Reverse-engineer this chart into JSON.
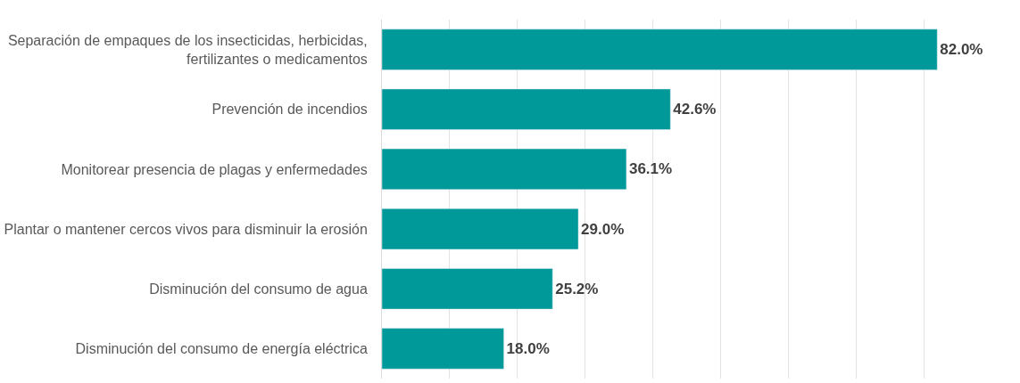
{
  "chart_data": {
    "type": "bar",
    "orientation": "horizontal",
    "categories": [
      "Separación de empaques de los insecticidas, herbicidas,\nfertilizantes o medicamentos",
      "Prevención de incendios",
      "Monitorear presencia de plagas y enfermedades",
      "Plantar o mantener cercos vivos para disminuir la erosión",
      "Disminución del consumo de agua",
      "Disminución del consumo de energía eléctrica"
    ],
    "values": [
      82.0,
      42.6,
      36.1,
      29.0,
      25.2,
      18.0
    ],
    "value_labels": [
      "82.0%",
      "42.6%",
      "36.1%",
      "29.0%",
      "25.2%",
      "18.0%"
    ],
    "color": "#009999",
    "grid": "x",
    "tick_labels": "y",
    "legend": false
  }
}
